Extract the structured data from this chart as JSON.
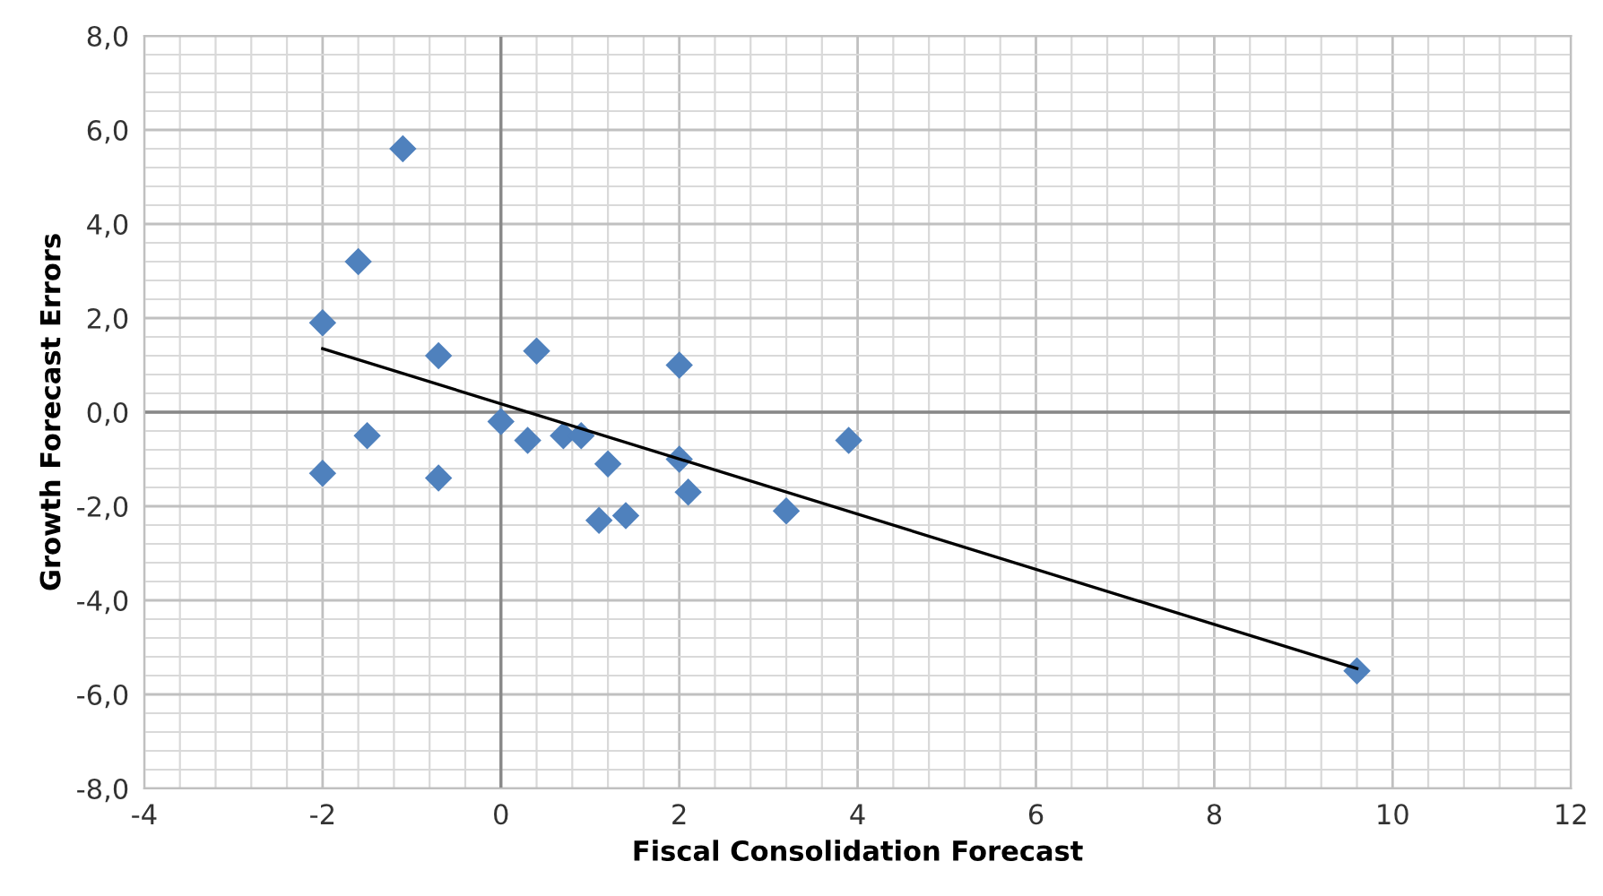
{
  "chart_data": {
    "type": "scatter",
    "xlabel": "Fiscal Consolidation Forecast",
    "ylabel": "Growth Forecast Errors",
    "xlim": [
      -4,
      12
    ],
    "ylim": [
      -8,
      8
    ],
    "xticks": [
      -4,
      -2,
      0,
      2,
      4,
      6,
      8,
      10,
      12
    ],
    "yticks": [
      {
        "value": -8,
        "label": "-8,0"
      },
      {
        "value": -6,
        "label": "-6,0"
      },
      {
        "value": -4,
        "label": "-4,0"
      },
      {
        "value": -2,
        "label": "-2,0"
      },
      {
        "value": 0,
        "label": "0,0"
      },
      {
        "value": 2,
        "label": "2,0"
      },
      {
        "value": 4,
        "label": "4,0"
      },
      {
        "value": 6,
        "label": "6,0"
      },
      {
        "value": 8,
        "label": "8,0"
      }
    ],
    "grid": true,
    "marker": "diamond",
    "series": [
      {
        "color": "#4f81bd",
        "x": [
          -2.0,
          -2.0,
          -1.6,
          -1.5,
          -1.1,
          -0.7,
          -0.7,
          0.0,
          0.3,
          0.4,
          0.7,
          0.9,
          1.1,
          1.2,
          1.4,
          2.0,
          2.0,
          2.1,
          3.2,
          3.9,
          9.6
        ],
        "values": [
          -1.3,
          1.9,
          3.2,
          -0.5,
          5.6,
          1.2,
          -1.4,
          -0.2,
          -0.6,
          1.3,
          -0.5,
          -0.5,
          -2.3,
          -1.1,
          -2.2,
          1.0,
          -1.0,
          -1.7,
          -2.1,
          -0.6,
          -5.5
        ]
      },
      {
        "type": "line",
        "color": "#000000",
        "marker": "none",
        "x": [
          -2.0,
          9.6
        ],
        "values": [
          1.35,
          -5.45
        ]
      }
    ]
  }
}
